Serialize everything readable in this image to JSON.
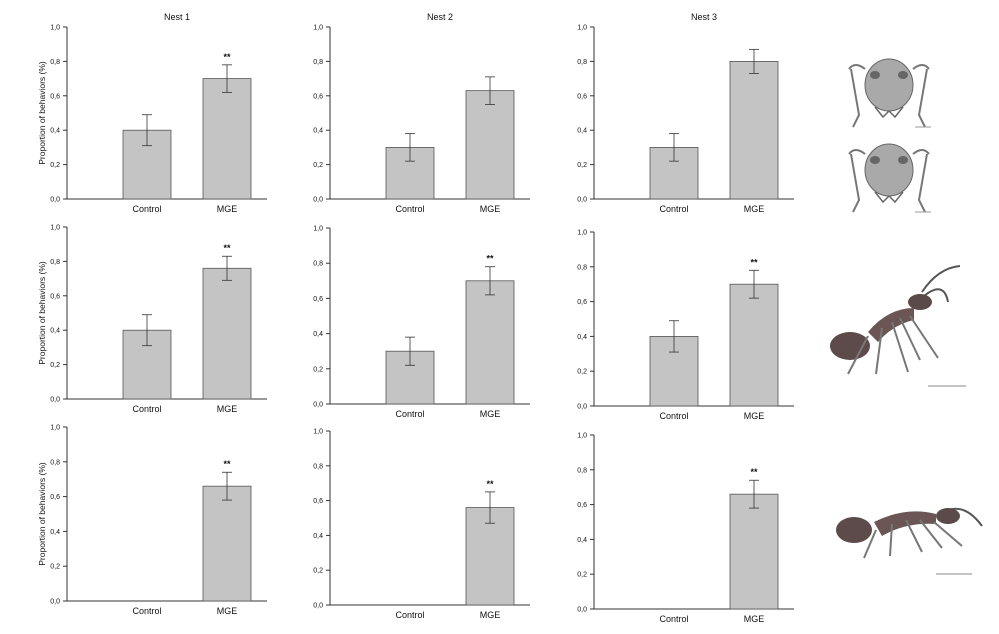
{
  "chart_data": [
    {
      "type": "bar",
      "title": "Nest 1",
      "ylabel": "Proportion of behaviors (%)",
      "ylim": [
        0,
        1.0
      ],
      "yticks": [
        "0,0",
        "0,2",
        "0,4",
        "0,6",
        "0,8",
        "1,0"
      ],
      "categories": [
        "Control",
        "MGE"
      ],
      "values": [
        0.4,
        0.7
      ],
      "errors": [
        0.09,
        0.08
      ],
      "significance": [
        "",
        "**"
      ]
    },
    {
      "type": "bar",
      "title": "Nest 2",
      "ylabel": "",
      "ylim": [
        0,
        1.0
      ],
      "yticks": [
        "0,0",
        "0,2",
        "0,4",
        "0,6",
        "0,8",
        "1,0"
      ],
      "categories": [
        "Control",
        "MGE"
      ],
      "values": [
        0.3,
        0.63
      ],
      "errors": [
        0.08,
        0.08
      ],
      "significance": [
        "",
        ""
      ]
    },
    {
      "type": "bar",
      "title": "Nest 3",
      "ylabel": "",
      "ylim": [
        0,
        1.0
      ],
      "yticks": [
        "0,0",
        "0,2",
        "0,4",
        "0,6",
        "0,8",
        "1,0"
      ],
      "categories": [
        "Control",
        "MGE"
      ],
      "values": [
        0.3,
        0.8
      ],
      "errors": [
        0.08,
        0.07
      ],
      "significance": [
        "",
        ""
      ]
    },
    {
      "type": "bar",
      "title": "",
      "ylabel": "Proportion of behaviors (%)",
      "ylim": [
        0,
        1.0
      ],
      "yticks": [
        "0,0",
        "0,2",
        "0,4",
        "0,6",
        "0,8",
        "1,0"
      ],
      "categories": [
        "Control",
        "MGE"
      ],
      "values": [
        0.4,
        0.76
      ],
      "errors": [
        0.09,
        0.07
      ],
      "significance": [
        "",
        "**"
      ]
    },
    {
      "type": "bar",
      "title": "",
      "ylabel": "",
      "ylim": [
        0,
        1.0
      ],
      "yticks": [
        "0,0",
        "0,2",
        "0,4",
        "0,6",
        "0,8",
        "1,0"
      ],
      "categories": [
        "Control",
        "MGE"
      ],
      "values": [
        0.3,
        0.7
      ],
      "errors": [
        0.08,
        0.08
      ],
      "significance": [
        "",
        "**"
      ]
    },
    {
      "type": "bar",
      "title": "",
      "ylabel": "",
      "ylim": [
        0,
        1.0
      ],
      "yticks": [
        "0,0",
        "0,2",
        "0,4",
        "0,6",
        "0,8",
        "1,0"
      ],
      "categories": [
        "Control",
        "MGE"
      ],
      "values": [
        0.4,
        0.7
      ],
      "errors": [
        0.09,
        0.08
      ],
      "significance": [
        "",
        "**"
      ]
    },
    {
      "type": "bar",
      "title": "",
      "ylabel": "Proportion of behaviors (%)",
      "ylim": [
        0,
        1.0
      ],
      "yticks": [
        "0,0",
        "0,2",
        "0,4",
        "0,6",
        "0,8",
        "1,0"
      ],
      "categories": [
        "Control",
        "MGE"
      ],
      "values": [
        0,
        0.66
      ],
      "errors": [
        0,
        0.08
      ],
      "significance": [
        "",
        "**"
      ]
    },
    {
      "type": "bar",
      "title": "",
      "ylabel": "",
      "ylim": [
        0,
        1.0
      ],
      "yticks": [
        "0,0",
        "0,2",
        "0,4",
        "0,6",
        "0,8",
        "1,0"
      ],
      "categories": [
        "Control",
        "MGE"
      ],
      "values": [
        0,
        0.56
      ],
      "errors": [
        0,
        0.09
      ],
      "significance": [
        "",
        "**"
      ]
    },
    {
      "type": "bar",
      "title": "",
      "ylabel": "",
      "ylim": [
        0,
        1.0
      ],
      "yticks": [
        "0,0",
        "0,2",
        "0,4",
        "0,6",
        "0,8",
        "1,0"
      ],
      "categories": [
        "Control",
        "MGE"
      ],
      "values": [
        0,
        0.66
      ],
      "errors": [
        0,
        0.08
      ],
      "significance": [
        "",
        "**"
      ]
    }
  ],
  "colors": {
    "bar_fill": "#c4c4c4",
    "bar_stroke": "#555555",
    "axis": "#333333",
    "text": "#111111"
  },
  "images": [
    {
      "name": "ant-head-illustration-icon"
    },
    {
      "name": "ant-head-illustration-icon"
    },
    {
      "name": "ant-side-view-illustration-icon"
    },
    {
      "name": "ant-side-view-illustration-icon"
    }
  ]
}
